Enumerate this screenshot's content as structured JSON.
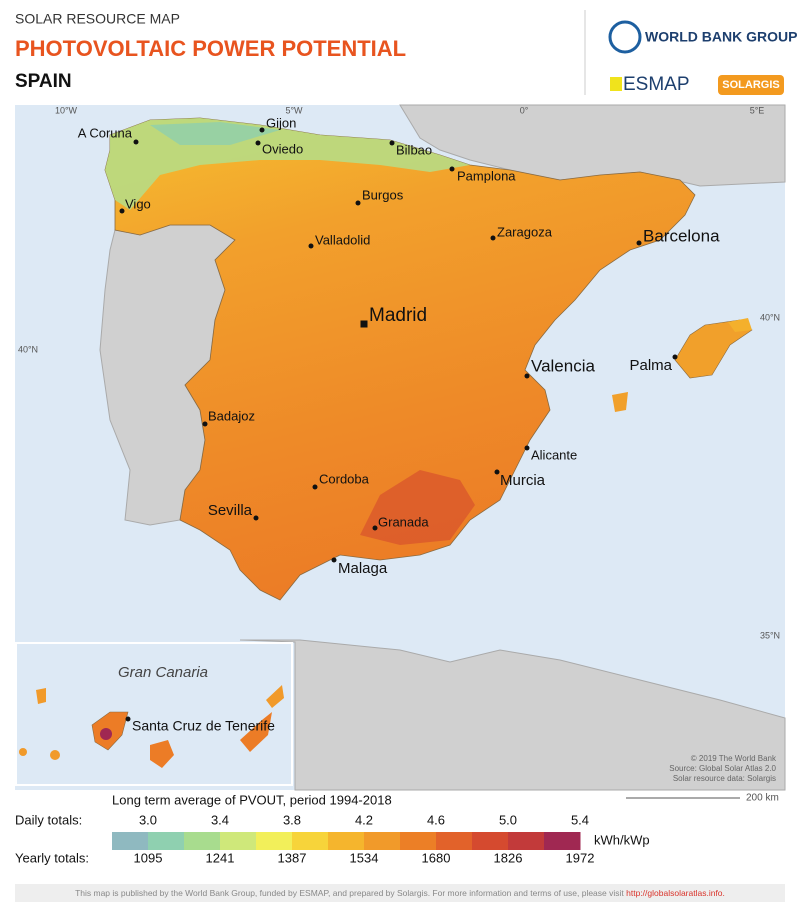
{
  "header": {
    "subtitle": "SOLAR RESOURCE MAP",
    "title": "PHOTOVOLTAIC POWER POTENTIAL",
    "country": "SPAIN"
  },
  "logos": {
    "world_bank": "WORLD BANK GROUP",
    "esmap": "ESMAP",
    "solargis": "SOLARGIS"
  },
  "graticule": [
    "10°W",
    "5°W",
    "0°",
    "5°E",
    "40°N",
    "40°N",
    "35°N"
  ],
  "cities": [
    "A Coruna",
    "Gijon",
    "Oviedo",
    "Bilbao",
    "Pamplona",
    "Vigo",
    "Burgos",
    "Valladolid",
    "Zaragoza",
    "Barcelona",
    "Madrid",
    "Valencia",
    "Palma",
    "Badajoz",
    "Alicante",
    "Murcia",
    "Cordoba",
    "Sevilla",
    "Granada",
    "Malaga"
  ],
  "inset": {
    "title": "Gran Canaria",
    "city": "Santa Cruz de Tenerife"
  },
  "credits": [
    "© 2019 The World Bank",
    "Source: Global Solar Atlas 2.0",
    "Solar resource data: Solargis"
  ],
  "scale_bar": "200 km",
  "legend": {
    "title": "Long term average of PVOUT, period 1994-2018",
    "daily_label": "Daily totals:",
    "daily": [
      "3.0",
      "3.4",
      "3.8",
      "4.2",
      "4.6",
      "5.0",
      "5.4"
    ],
    "unit": "kWh/kWp",
    "yearly_label": "Yearly totals:",
    "yearly": [
      "1095",
      "1241",
      "1387",
      "1534",
      "1680",
      "1826",
      "1972"
    ],
    "colors": [
      "#8fb9c0",
      "#8fd0b0",
      "#a8dc8e",
      "#cfe87a",
      "#f2ef5a",
      "#f7d43a",
      "#f5b52d",
      "#f19a2a",
      "#ec7f26",
      "#e2622a",
      "#d54a2f",
      "#c23a3a",
      "#a02852"
    ]
  },
  "footer": {
    "text": "This map is published by the World Bank Group, funded by ESMAP, and prepared by Solargis. For more information and terms of use, please visit",
    "link": "http://globalsolaratlas.info."
  }
}
